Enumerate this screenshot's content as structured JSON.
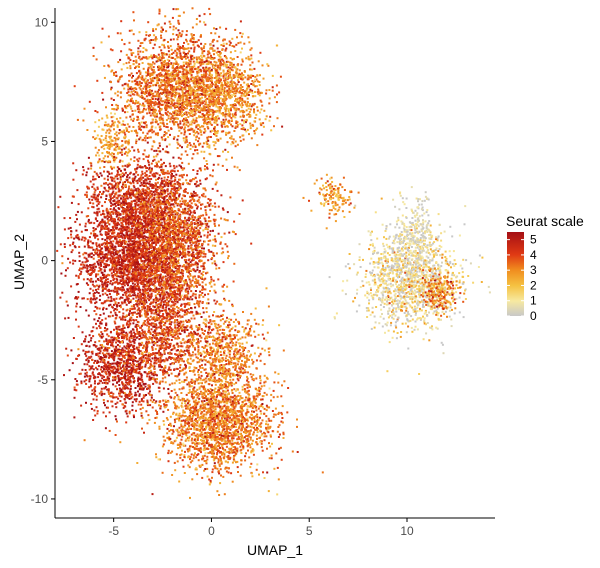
{
  "chart_data": {
    "type": "scatter",
    "title": "",
    "xlabel": "UMAP_1",
    "ylabel": "UMAP_2",
    "xlim": [
      -8,
      14.5
    ],
    "ylim": [
      -10.8,
      10.6
    ],
    "x_ticks": [
      -5,
      0,
      5,
      10
    ],
    "y_ticks": [
      -10,
      -5,
      0,
      5,
      10
    ],
    "grid": false,
    "legend": {
      "title": "Seurat scale",
      "placement": "right",
      "breaks": [
        5,
        4,
        3,
        2,
        1,
        0
      ],
      "range": [
        0,
        5.5
      ]
    },
    "color_scale": {
      "stops": [
        {
          "value": 0,
          "color": "#c8c8c8"
        },
        {
          "value": 1,
          "color": "#f7e9a0"
        },
        {
          "value": 2,
          "color": "#f5c242"
        },
        {
          "value": 3,
          "color": "#f08c1e"
        },
        {
          "value": 4,
          "color": "#e03a14"
        },
        {
          "value": 5,
          "color": "#a50f15"
        }
      ]
    },
    "clusters": [
      {
        "name": "top",
        "cx": -1.7,
        "cy": 7.2,
        "sx": 1.6,
        "sy": 1.3,
        "n": 2200,
        "mean": 3.4,
        "sd": 0.7
      },
      {
        "name": "top-right lobe",
        "cx": 0.8,
        "cy": 7.0,
        "sx": 1.0,
        "sy": 0.9,
        "n": 700,
        "mean": 3.0,
        "sd": 0.7
      },
      {
        "name": "top arm",
        "cx": -5.0,
        "cy": 4.9,
        "sx": 0.5,
        "sy": 0.6,
        "n": 180,
        "mean": 2.6,
        "sd": 0.6
      },
      {
        "name": "upper-mid",
        "cx": -3.5,
        "cy": 2.5,
        "sx": 1.4,
        "sy": 0.9,
        "n": 1200,
        "mean": 4.2,
        "sd": 0.6
      },
      {
        "name": "middle",
        "cx": -4.2,
        "cy": 0.0,
        "sx": 1.4,
        "sy": 1.2,
        "n": 2200,
        "mean": 4.4,
        "sd": 0.5
      },
      {
        "name": "middle-right",
        "cx": -1.8,
        "cy": 0.5,
        "sx": 1.1,
        "sy": 1.4,
        "n": 1500,
        "mean": 3.7,
        "sd": 0.7
      },
      {
        "name": "lower-left",
        "cx": -4.6,
        "cy": -4.5,
        "sx": 1.1,
        "sy": 0.9,
        "n": 1000,
        "mean": 4.4,
        "sd": 0.6
      },
      {
        "name": "lower-mid",
        "cx": -2.5,
        "cy": -3.0,
        "sx": 1.2,
        "sy": 1.1,
        "n": 900,
        "mean": 3.9,
        "sd": 0.7
      },
      {
        "name": "bottom",
        "cx": 0.3,
        "cy": -6.8,
        "sx": 1.4,
        "sy": 1.0,
        "n": 1800,
        "mean": 3.2,
        "sd": 0.7
      },
      {
        "name": "bottom-upper",
        "cx": 0.6,
        "cy": -4.0,
        "sx": 1.0,
        "sy": 1.0,
        "n": 700,
        "mean": 3.1,
        "sd": 0.7
      },
      {
        "name": "right arm",
        "cx": 6.2,
        "cy": 2.7,
        "sx": 0.5,
        "sy": 0.4,
        "n": 130,
        "mean": 2.7,
        "sd": 0.7
      },
      {
        "name": "right island",
        "cx": 10.2,
        "cy": -0.8,
        "sx": 1.2,
        "sy": 1.0,
        "n": 1300,
        "mean": 0.9,
        "sd": 1.0
      },
      {
        "name": "right island top",
        "cx": 10.4,
        "cy": 1.1,
        "sx": 0.5,
        "sy": 0.7,
        "n": 250,
        "mean": 0.4,
        "sd": 0.6
      },
      {
        "name": "right island tail",
        "cx": 11.7,
        "cy": -1.3,
        "sx": 0.5,
        "sy": 0.4,
        "n": 200,
        "mean": 3.0,
        "sd": 0.9
      }
    ]
  }
}
